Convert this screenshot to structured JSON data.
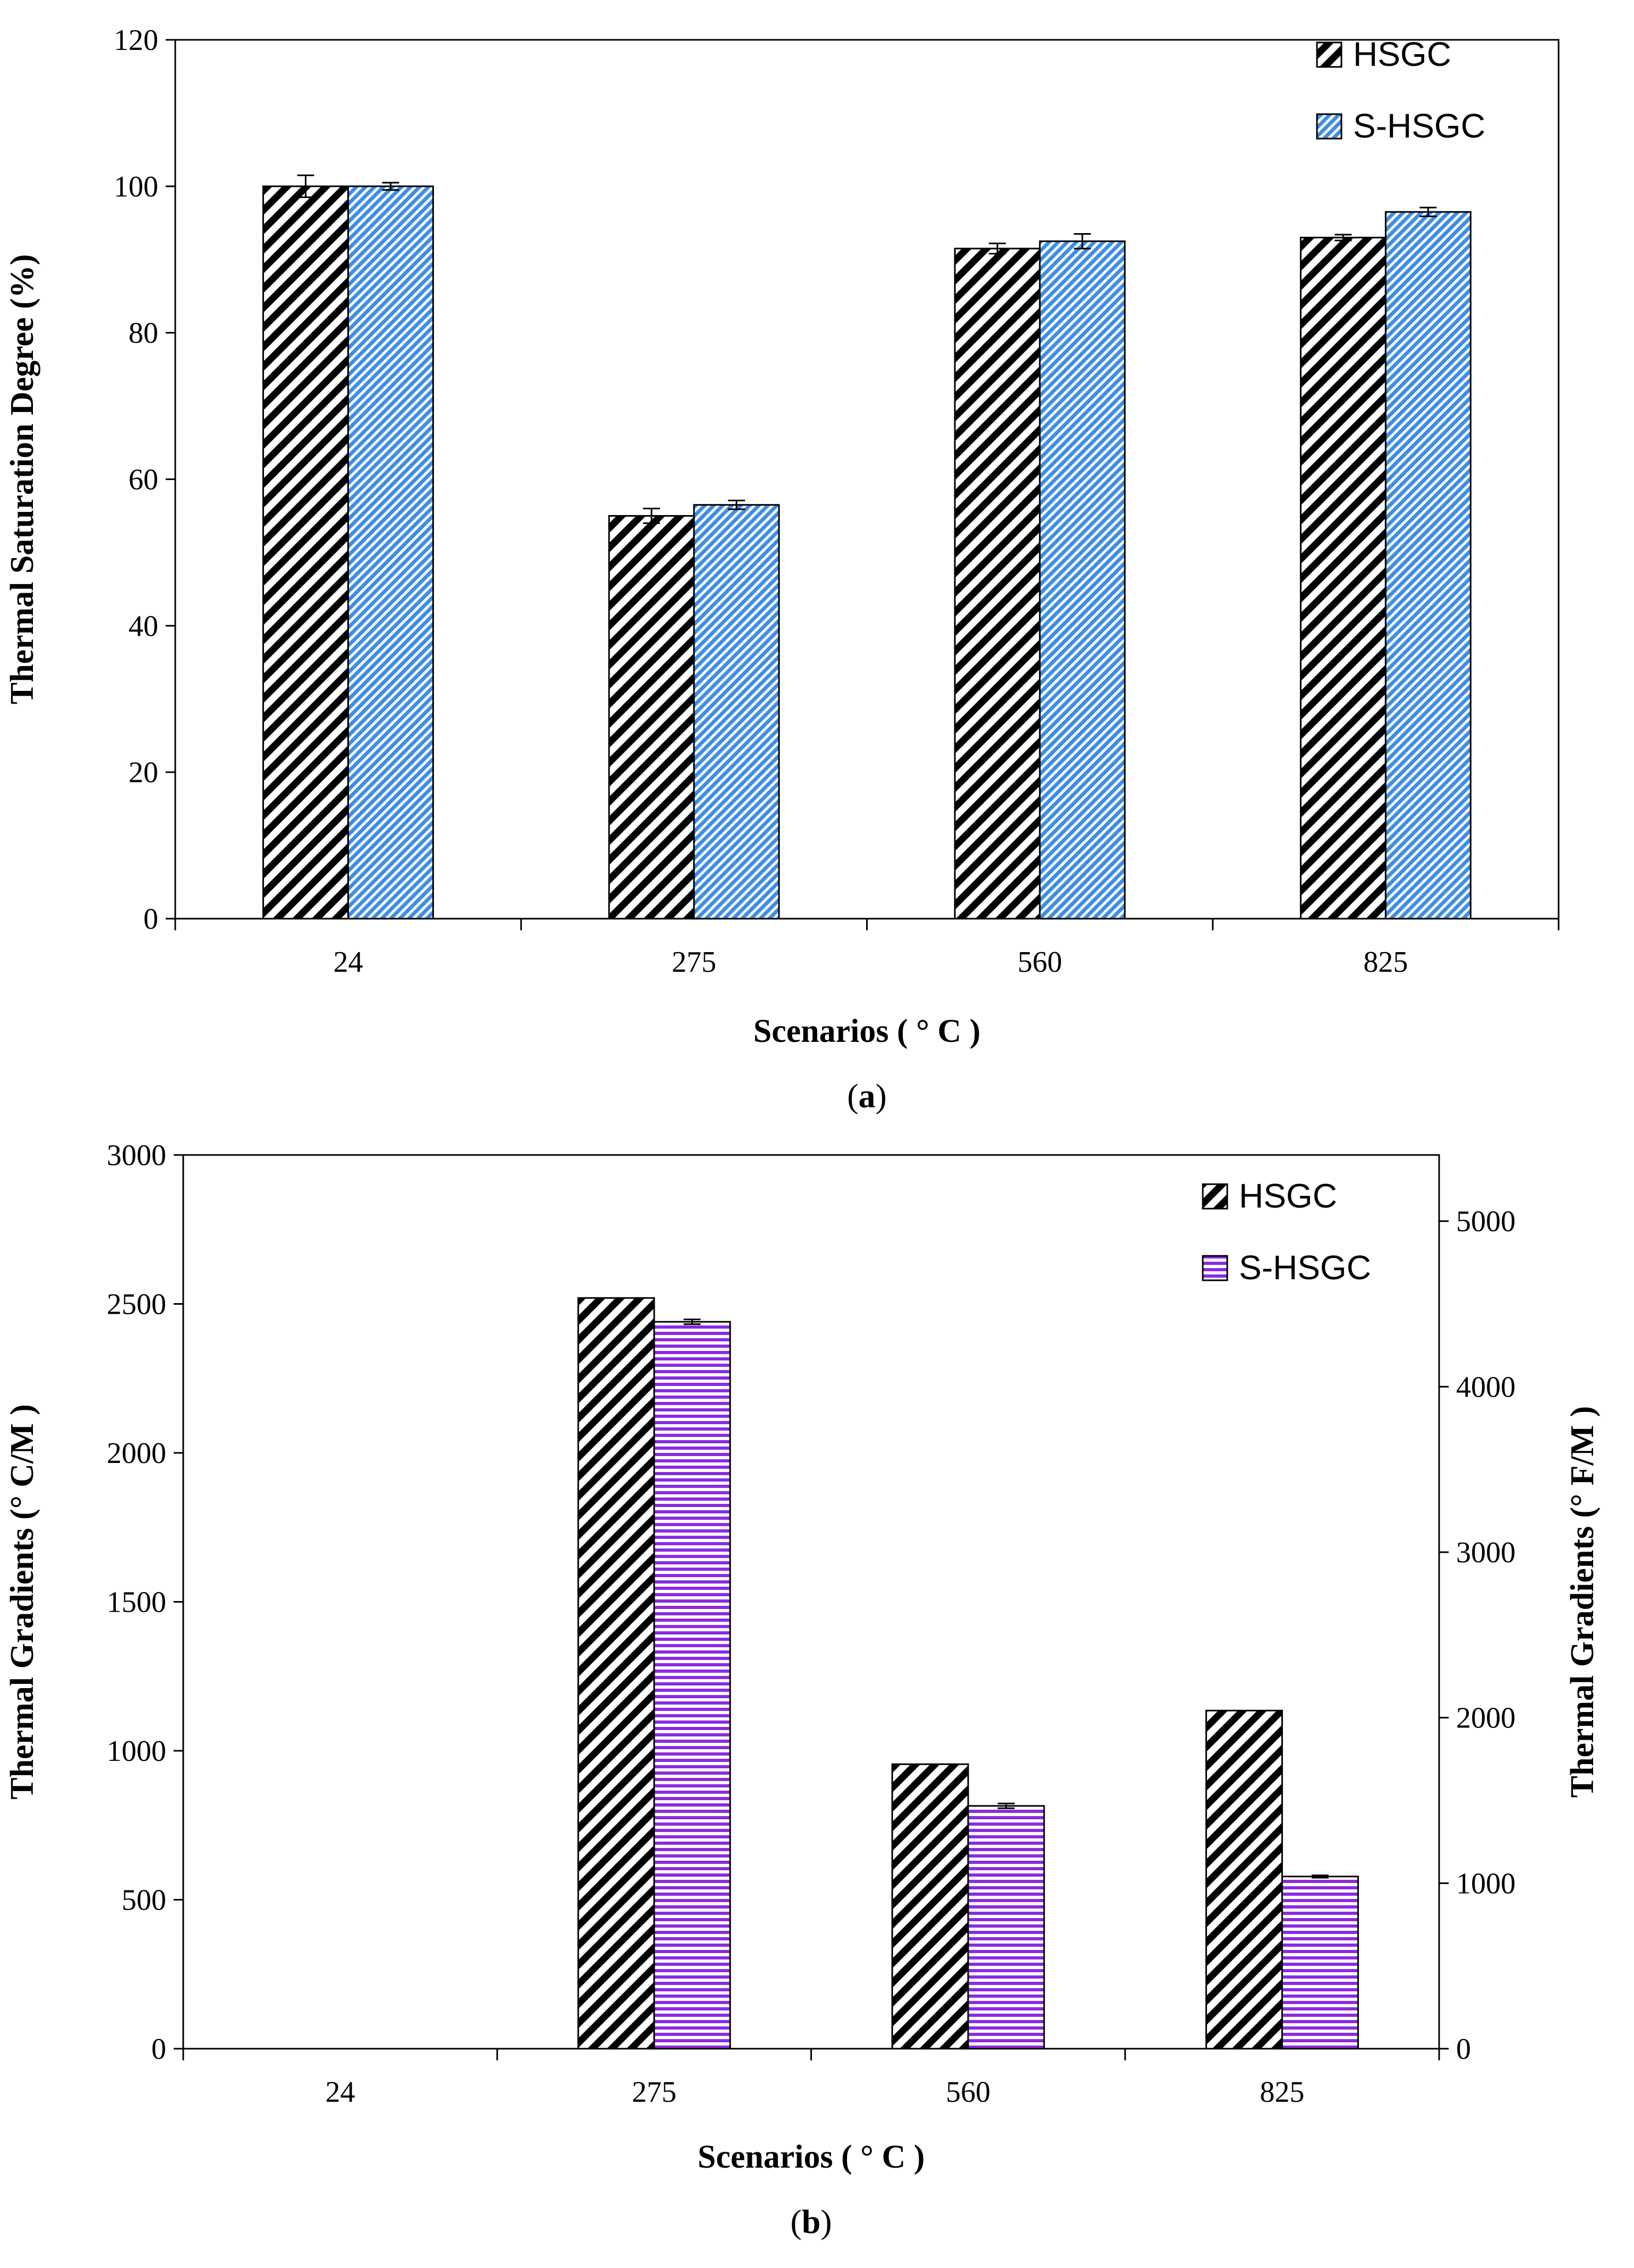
{
  "chart_data": [
    {
      "type": "bar",
      "panel_label": "a",
      "categories": [
        "24",
        "275",
        "560",
        "825"
      ],
      "series": [
        {
          "name": "HSGC",
          "values": [
            100,
            55,
            91.5,
            93
          ],
          "errors": [
            1.5,
            1.0,
            0.7,
            0.4
          ],
          "pattern": "diagonal-black"
        },
        {
          "name": "S-HSGC",
          "values": [
            100,
            56.5,
            92.5,
            96.5
          ],
          "errors": [
            0.5,
            0.6,
            1.0,
            0.6
          ],
          "pattern": "diagonal-blue"
        }
      ],
      "xlabel": "Scenarios ( ° C )",
      "ylabel": "Thermal Saturation Degree (%)",
      "ylim": [
        0,
        120
      ],
      "yticks": [
        0,
        20,
        40,
        60,
        80,
        100,
        120
      ],
      "legend": "top-right",
      "grid": false
    },
    {
      "type": "bar",
      "panel_label": "b",
      "categories": [
        "24",
        "275",
        "560",
        "825"
      ],
      "series": [
        {
          "name": "HSGC",
          "values": [
            0,
            2520,
            955,
            1135
          ],
          "errors": [
            0,
            0,
            0,
            0
          ],
          "pattern": "diagonal-black"
        },
        {
          "name": "S-HSGC",
          "values": [
            0,
            2440,
            815,
            578
          ],
          "errors": [
            0,
            8,
            8,
            4
          ],
          "pattern": "horizontal-purple"
        }
      ],
      "xlabel": "Scenarios ( ° C )",
      "ylabel": "Thermal Gradients (° C/M )",
      "ylabel_right": "Thermal Gradients (° F/M )",
      "ylim": [
        0,
        3000
      ],
      "yticks": [
        0,
        500,
        1000,
        1500,
        2000,
        2500,
        3000
      ],
      "ylim_right": [
        0,
        5400
      ],
      "yticks_right": [
        0,
        1000,
        2000,
        3000,
        4000,
        5000
      ],
      "legend": "top-right",
      "grid": false
    }
  ]
}
